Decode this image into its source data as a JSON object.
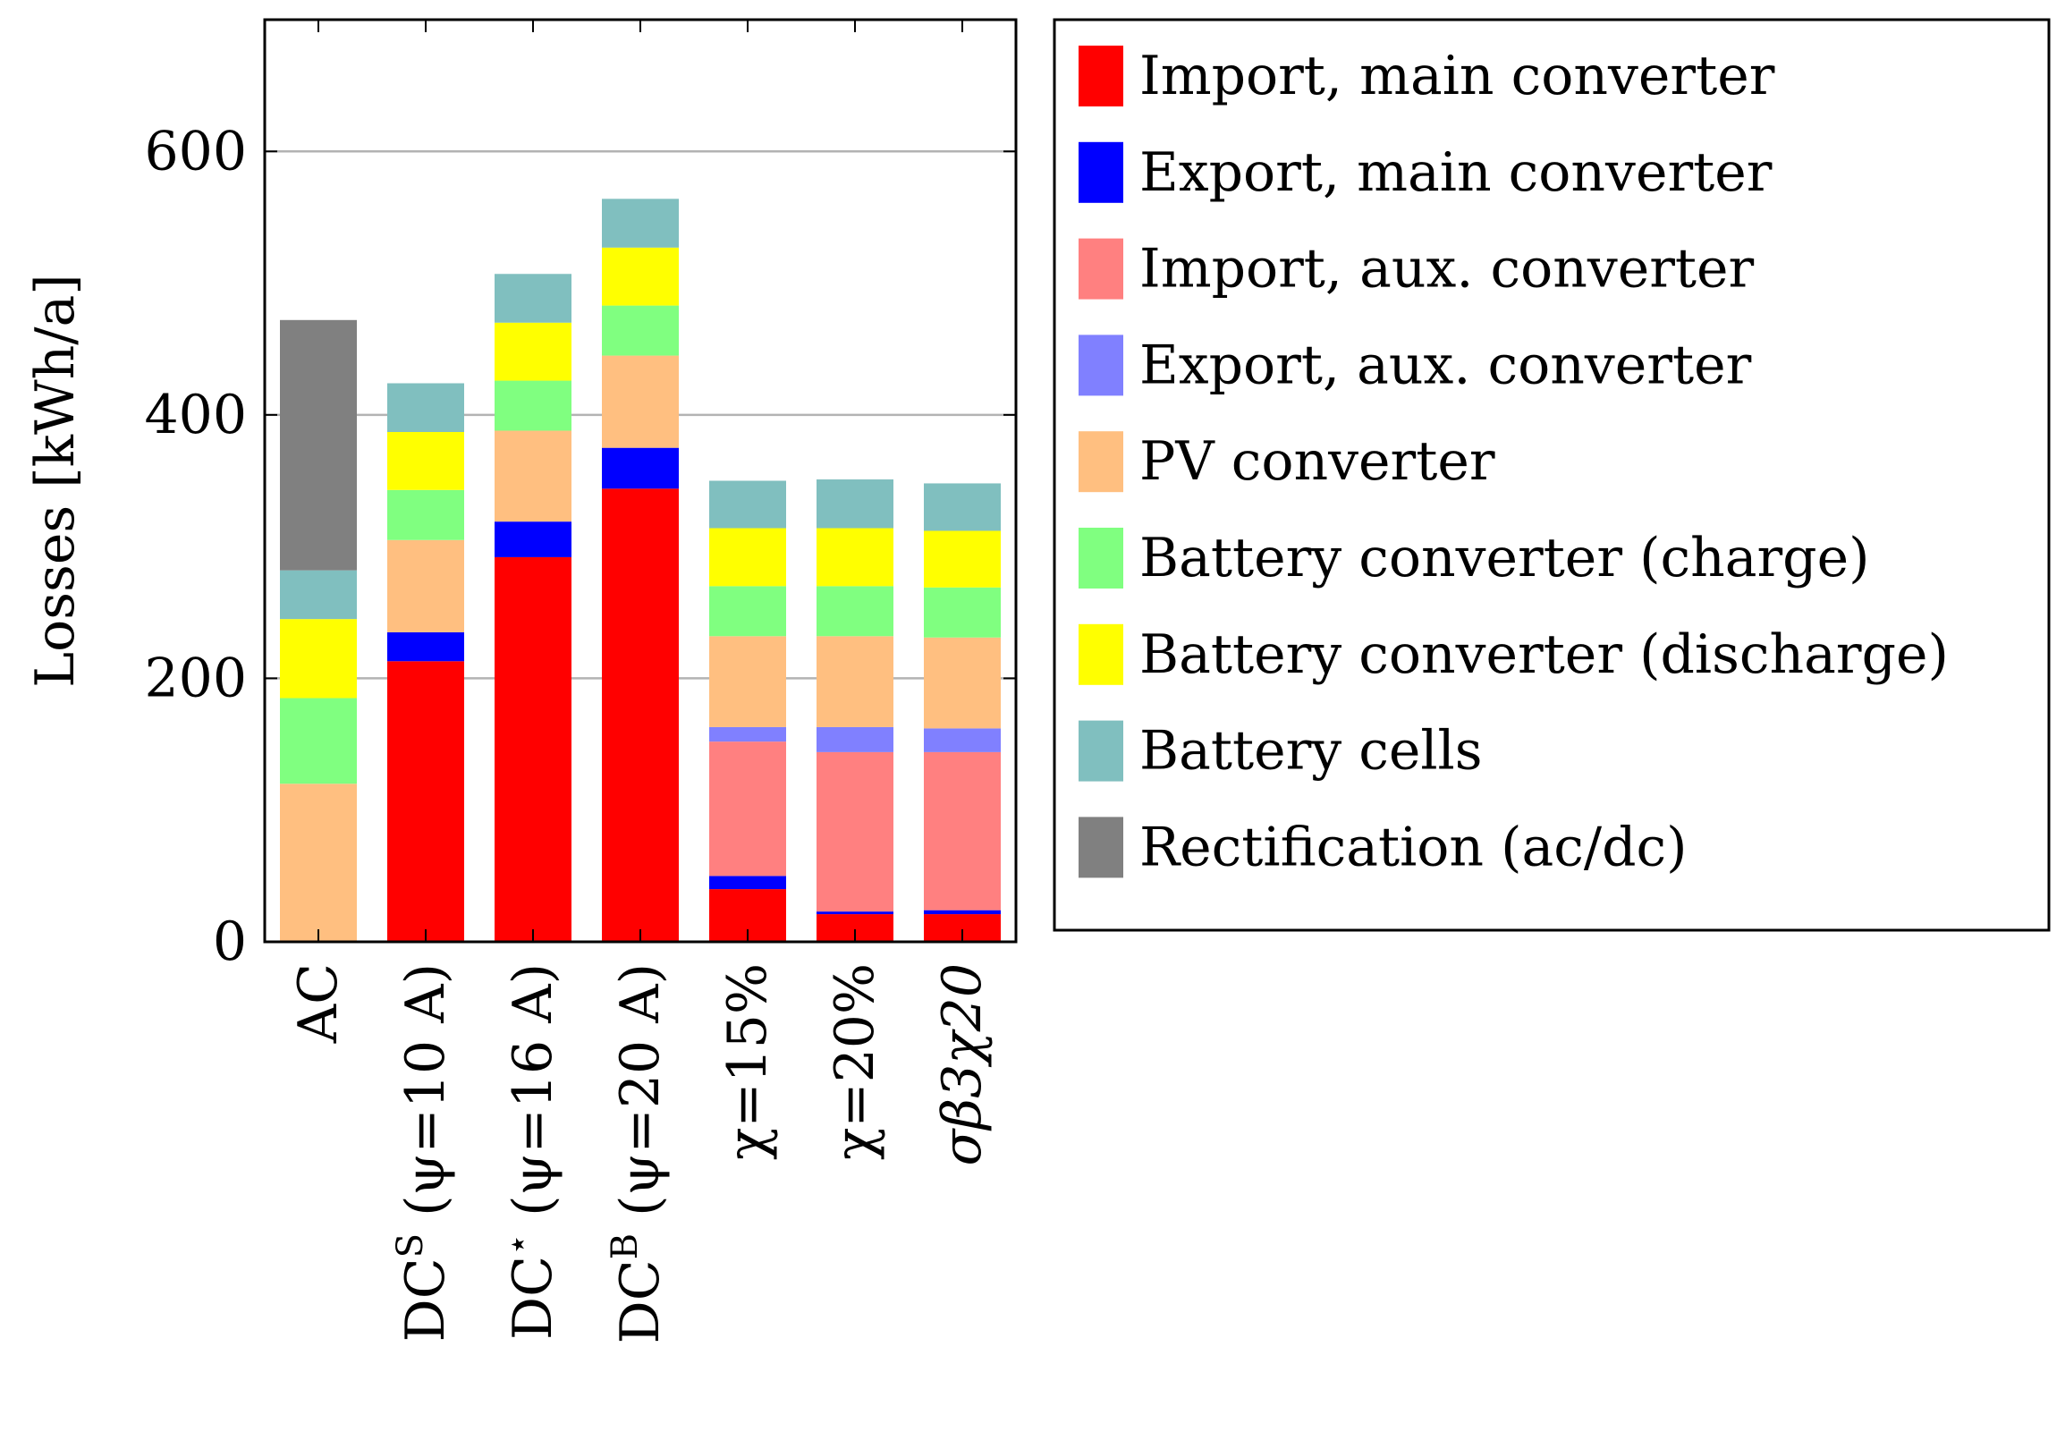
{
  "chart_data": {
    "type": "bar",
    "stacked": true,
    "ylabel": "Losses [kWh/a]",
    "ylim": [
      0,
      700
    ],
    "yticks": [
      0,
      200,
      400,
      600
    ],
    "grid": true,
    "legend_position": "right",
    "categories": [
      {
        "pre": "",
        "sup": "",
        "main": "AC",
        "italic": false
      },
      {
        "pre": "DC",
        "sup": "S",
        "main": " (ψ=10 A)",
        "italic": false
      },
      {
        "pre": "DC",
        "sup": "⋆",
        "main": " (ψ=16 A)",
        "italic": false
      },
      {
        "pre": "DC",
        "sup": "B",
        "main": " (ψ=20 A)",
        "italic": false
      },
      {
        "pre": "",
        "sup": "",
        "main": "χ=15%",
        "italic": false
      },
      {
        "pre": "",
        "sup": "",
        "main": "χ=20%",
        "italic": false
      },
      {
        "pre": "",
        "sup": "",
        "main": "σβ3χ20",
        "italic": true
      }
    ],
    "series": [
      {
        "name": "Import, main converter",
        "color": "#ff0000",
        "values": [
          0,
          213,
          292,
          344,
          40,
          21,
          21
        ]
      },
      {
        "name": "Export, main converter",
        "color": "#0000ff",
        "values": [
          0,
          22,
          27,
          31,
          10,
          2,
          3
        ]
      },
      {
        "name": "Import, aux. converter",
        "color": "#ff8080",
        "values": [
          0,
          0,
          0,
          0,
          102,
          121,
          120
        ]
      },
      {
        "name": "Export, aux. converter",
        "color": "#8080ff",
        "values": [
          0,
          0,
          0,
          0,
          11,
          19,
          18
        ]
      },
      {
        "name": "PV converter",
        "color": "#ffbf80",
        "values": [
          120,
          70,
          69,
          70,
          69,
          69,
          69
        ]
      },
      {
        "name": "Battery converter (charge)",
        "color": "#80ff80",
        "values": [
          65,
          38,
          38,
          38,
          38,
          38,
          38
        ]
      },
      {
        "name": "Battery converter (discharge)",
        "color": "#ffff00",
        "values": [
          60,
          44,
          44,
          44,
          44,
          44,
          43
        ]
      },
      {
        "name": "Battery cells",
        "color": "#80bfbf",
        "values": [
          37,
          37,
          37,
          37,
          36,
          37,
          36
        ]
      },
      {
        "name": "Rectification (ac/dc)",
        "color": "#808080",
        "values": [
          190,
          0,
          0,
          0,
          0,
          0,
          0
        ]
      }
    ]
  }
}
